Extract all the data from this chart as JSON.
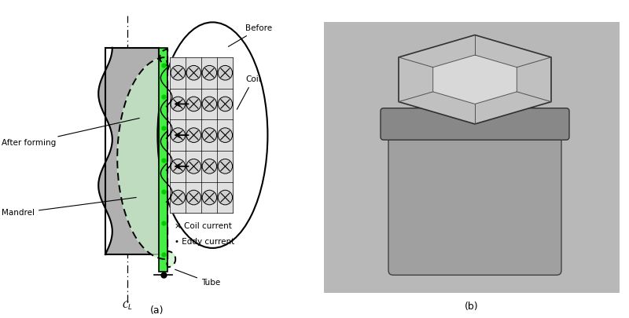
{
  "bg_color": "#ffffff",
  "mandrel_color": "#b0b0b0",
  "tube_color": "#44ee44",
  "coil_fill": "#c8c8c8",
  "labels": {
    "after_forming": "After forming",
    "mandrel": "Mandrel",
    "before": "Before",
    "coil": "Coil",
    "coil_current": "× Coil current",
    "eddy_current": "• Eddy current",
    "tube": "Tube"
  },
  "coil_rows": 5,
  "coil_cols": 4,
  "photo_bg": "#a8a8a8"
}
